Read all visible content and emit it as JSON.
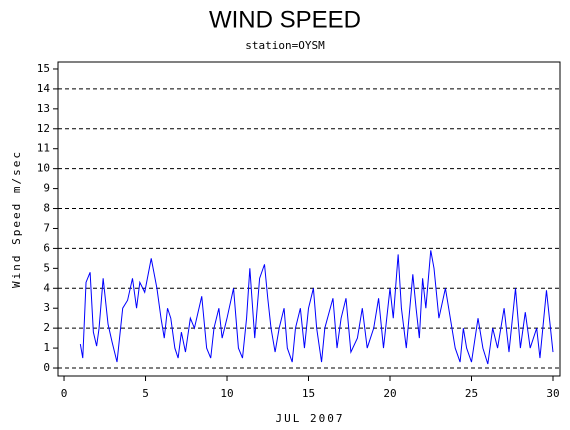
{
  "chart_data": {
    "type": "line",
    "title": "WIND SPEED",
    "subtitle": "station=OYSM",
    "x_label": "JUL 2007",
    "y_label": "Wind Speed m/sec",
    "xlim": [
      -0.37,
      30.43
    ],
    "xticks": [
      0,
      5,
      10,
      15,
      20,
      25,
      30
    ],
    "ylim": [
      -0.4,
      15.35
    ],
    "yticks": [
      0,
      1,
      2,
      3,
      4,
      5,
      6,
      7,
      8,
      9,
      10,
      11,
      12,
      13,
      14,
      15
    ],
    "ygrid": [
      0,
      2,
      4,
      6,
      8,
      10,
      12,
      14
    ],
    "series": [
      {
        "color": "#0000ff",
        "x": [
          1.0,
          1.15,
          1.35,
          1.6,
          1.8,
          2.0,
          2.15,
          2.4,
          2.7,
          2.95,
          3.25,
          3.6,
          3.9,
          4.2,
          4.45,
          4.65,
          4.95,
          5.35,
          5.7,
          5.95,
          6.15,
          6.35,
          6.55,
          6.8,
          7.0,
          7.2,
          7.45,
          7.75,
          8.0,
          8.45,
          8.75,
          9.0,
          9.2,
          9.5,
          9.7,
          10.0,
          10.4,
          10.7,
          10.95,
          11.2,
          11.4,
          11.7,
          12.0,
          12.3,
          12.5,
          12.7,
          12.95,
          13.2,
          13.5,
          13.7,
          14.0,
          14.2,
          14.5,
          14.75,
          15.0,
          15.3,
          15.5,
          15.8,
          16.0,
          16.5,
          16.75,
          17.0,
          17.3,
          17.6,
          18.0,
          18.3,
          18.6,
          19.0,
          19.3,
          19.6,
          20.0,
          20.2,
          20.5,
          20.7,
          21.0,
          21.4,
          21.6,
          21.8,
          22.0,
          22.2,
          22.5,
          22.7,
          23.0,
          23.4,
          23.6,
          24.0,
          24.3,
          24.5,
          24.7,
          25.0,
          25.4,
          25.7,
          26.0,
          26.3,
          26.6,
          27.0,
          27.3,
          27.7,
          28.0,
          28.3,
          28.6,
          29.0,
          29.2,
          29.6,
          30.0
        ],
        "values": [
          1.2,
          0.5,
          4.3,
          4.8,
          1.8,
          1.1,
          2.0,
          4.5,
          2.2,
          1.3,
          0.3,
          3.0,
          3.4,
          4.5,
          3.0,
          4.3,
          3.8,
          5.5,
          4.0,
          2.5,
          1.5,
          3.0,
          2.5,
          1.0,
          0.5,
          1.8,
          0.8,
          2.5,
          2.0,
          3.6,
          1.0,
          0.5,
          2.0,
          3.0,
          1.5,
          2.5,
          4.0,
          1.0,
          0.5,
          2.5,
          5.0,
          1.5,
          4.5,
          5.2,
          3.5,
          2.0,
          0.8,
          2.0,
          3.0,
          1.0,
          0.3,
          2.0,
          3.0,
          1.0,
          3.0,
          4.0,
          2.0,
          0.3,
          2.0,
          3.5,
          1.0,
          2.5,
          3.5,
          0.8,
          1.5,
          3.0,
          1.0,
          2.0,
          3.5,
          1.0,
          4.0,
          2.5,
          5.7,
          3.0,
          1.0,
          4.7,
          3.0,
          1.5,
          4.5,
          3.0,
          5.9,
          5.0,
          2.5,
          4.0,
          3.0,
          1.0,
          0.3,
          2.0,
          1.0,
          0.3,
          2.5,
          1.0,
          0.2,
          2.0,
          1.0,
          3.0,
          0.8,
          4.0,
          1.0,
          2.8,
          1.0,
          2.0,
          0.5,
          3.9,
          0.8
        ]
      }
    ]
  }
}
